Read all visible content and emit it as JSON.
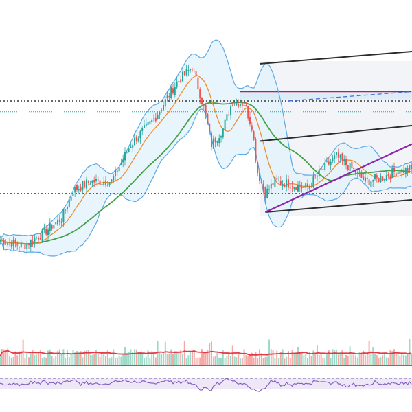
{
  "chart_data": {
    "type": "candlestick",
    "title": "",
    "xlabel": "",
    "ylabel": "",
    "grid": false,
    "legend": "none",
    "price_range": [
      0,
      100
    ],
    "colors": {
      "up_candle": "#26a69a",
      "down_candle": "#ef5350",
      "bollinger_band": "#5aa9e6",
      "bollinger_fill": "#e3f2fb",
      "fast_ma": "#f08c2a",
      "slow_ma": "#43a047",
      "channel_lines": "#2b2b2b",
      "trend_line": "#8e24aa",
      "resistance_line": "#c2185b",
      "dashed_projection": "#3b6fd8",
      "volume_ma": "#e53945",
      "volume_up": "#9fd9c8",
      "volume_down": "#f5a9a5",
      "rsi_line": "#7e57c2",
      "rsi_band_fill": "#ede7f6",
      "dotted_levels": "#333333",
      "dotted_teal_level": "#26a69a"
    },
    "horizontal_levels": [
      {
        "style": "dotted",
        "value": 74
      },
      {
        "style": "dotted-teal",
        "value": 70.5
      },
      {
        "style": "dotted",
        "value": 44
      }
    ],
    "price_anchors": [
      {
        "i": 0,
        "c": 29
      },
      {
        "i": 12,
        "c": 27
      },
      {
        "i": 22,
        "c": 31
      },
      {
        "i": 32,
        "c": 36
      },
      {
        "i": 38,
        "c": 45
      },
      {
        "i": 47,
        "c": 48
      },
      {
        "i": 58,
        "c": 48
      },
      {
        "i": 68,
        "c": 60
      },
      {
        "i": 80,
        "c": 68
      },
      {
        "i": 92,
        "c": 80
      },
      {
        "i": 100,
        "c": 85
      },
      {
        "i": 106,
        "c": 72
      },
      {
        "i": 110,
        "c": 60
      },
      {
        "i": 116,
        "c": 65
      },
      {
        "i": 121,
        "c": 74
      },
      {
        "i": 127,
        "c": 73
      },
      {
        "i": 131,
        "c": 66
      },
      {
        "i": 134,
        "c": 51
      },
      {
        "i": 138,
        "c": 44
      },
      {
        "i": 143,
        "c": 48
      },
      {
        "i": 152,
        "c": 47
      },
      {
        "i": 160,
        "c": 46
      },
      {
        "i": 168,
        "c": 52
      },
      {
        "i": 175,
        "c": 56
      },
      {
        "i": 183,
        "c": 52
      },
      {
        "i": 190,
        "c": 48
      },
      {
        "i": 198,
        "c": 49
      },
      {
        "i": 205,
        "c": 51
      },
      {
        "i": 214,
        "c": 52
      }
    ],
    "channels": [
      {
        "line": "upper",
        "from": {
          "i": 135,
          "c": 86
        },
        "to": {
          "i": 214,
          "c": 90
        }
      },
      {
        "line": "middle",
        "from": {
          "i": 135,
          "c": 61
        },
        "to": {
          "i": 214,
          "c": 66
        }
      },
      {
        "line": "lower",
        "from": {
          "i": 138,
          "c": 38
        },
        "to": {
          "i": 214,
          "c": 42
        }
      }
    ],
    "trend_line": {
      "from": {
        "i": 138,
        "c": 38
      },
      "to": {
        "i": 214,
        "c": 60
      }
    },
    "resistance": {
      "from": {
        "i": 125,
        "c": 77
      },
      "to": {
        "i": 214,
        "c": 77
      }
    },
    "projection": {
      "from": {
        "i": 150,
        "c": 74
      },
      "to": {
        "i": 214,
        "c": 77
      }
    },
    "volume_scale_max": 100,
    "rsi_scale": [
      0,
      100
    ],
    "rsi_bands": [
      30,
      70
    ]
  }
}
